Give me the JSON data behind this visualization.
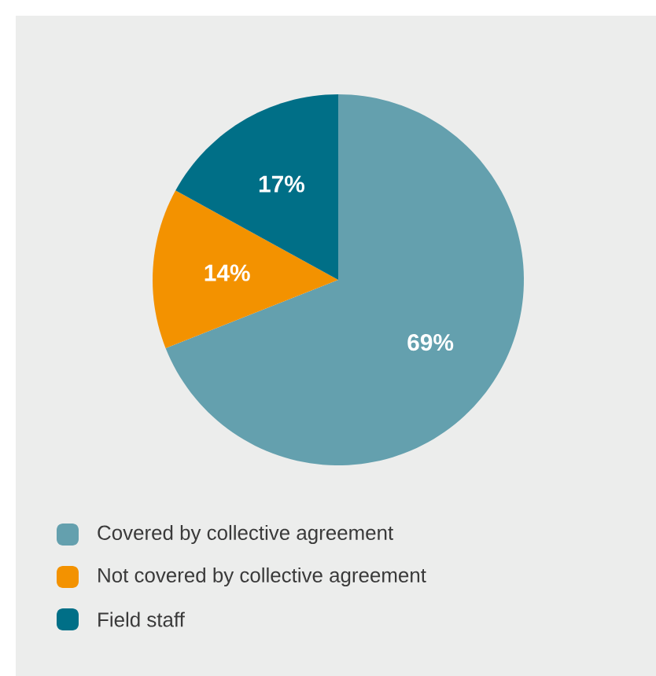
{
  "chart_data": {
    "type": "pie",
    "categories": [
      "Covered by collective agreement",
      "Not covered by collective agreement",
      "Field staff"
    ],
    "values": [
      69,
      14,
      17
    ],
    "value_labels": [
      "69%",
      "14%",
      "17%"
    ],
    "colors": [
      "#64a0ae",
      "#f39200",
      "#006f87"
    ],
    "legend": "bottom"
  }
}
